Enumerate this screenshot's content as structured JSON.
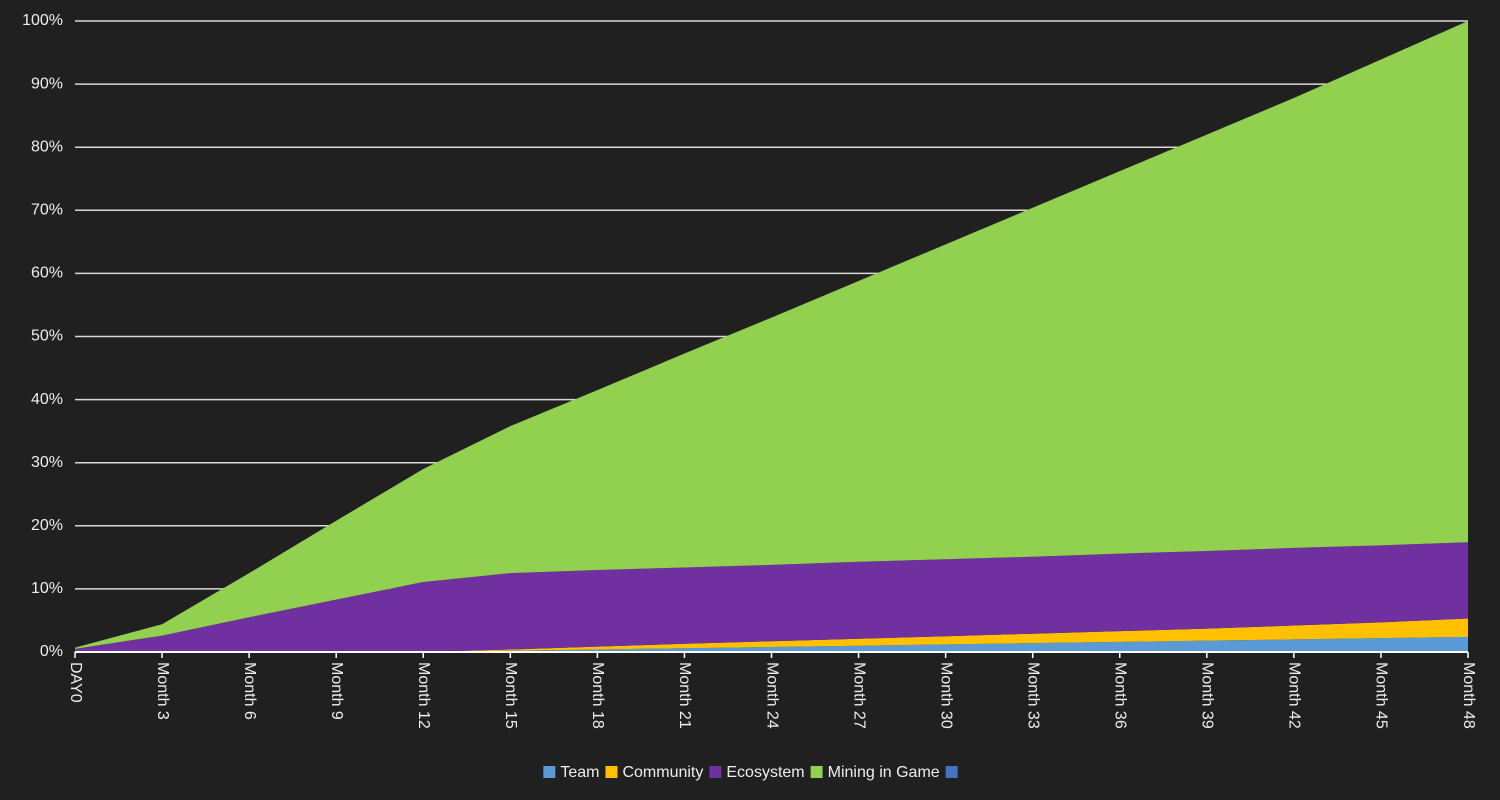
{
  "chart_data": {
    "type": "stacked-area",
    "categories": [
      "DAY0",
      "Month 3",
      "Month 6",
      "Month 9",
      "Month 12",
      "Month 15",
      "Month 18",
      "Month 21",
      "Month 24",
      "Month 27",
      "Month 30",
      "Month 33",
      "Month 36",
      "Month 39",
      "Month 42",
      "Month 45",
      "Month 48"
    ],
    "series": [
      {
        "name": "Team",
        "color": "#5b9bd5",
        "values": [
          0,
          0,
          0,
          0,
          0,
          0.2,
          0.4,
          0.6,
          0.8,
          1.0,
          1.2,
          1.4,
          1.6,
          1.8,
          2.0,
          2.2,
          2.4
        ]
      },
      {
        "name": "Community",
        "color": "#ffc000",
        "values": [
          0,
          0,
          0,
          0,
          0,
          0.2,
          0.45,
          0.7,
          0.9,
          1.1,
          1.3,
          1.5,
          1.7,
          1.9,
          2.2,
          2.5,
          2.9
        ]
      },
      {
        "name": "Ecosystem",
        "color": "#7030a0",
        "values": [
          0.5,
          2.6,
          5.5,
          8.3,
          11.1,
          12.1,
          12.15,
          12.1,
          12.1,
          12.2,
          12.2,
          12.2,
          12.3,
          12.3,
          12.3,
          12.2,
          12.1
        ]
      },
      {
        "name": "Mining in Game",
        "color": "#92d050",
        "values": [
          0.2,
          1.8,
          7.0,
          12.5,
          17.9,
          23.3,
          28.5,
          33.9,
          39.2,
          44.5,
          49.9,
          55.3,
          60.6,
          66.0,
          71.3,
          77.0,
          82.6
        ]
      },
      {
        "color": "#4472c4",
        "values": [
          0,
          0,
          0,
          0,
          0,
          0,
          0,
          0,
          0,
          0,
          0,
          0,
          0,
          0,
          0,
          0,
          0
        ]
      }
    ],
    "ylim": [
      0,
      100
    ],
    "yticks": [
      {
        "value": 0,
        "label": "0%"
      },
      {
        "value": 10,
        "label": "10%"
      },
      {
        "value": 20,
        "label": "20%"
      },
      {
        "value": 30,
        "label": "30%"
      },
      {
        "value": 40,
        "label": "40%"
      },
      {
        "value": 50,
        "label": "50%"
      },
      {
        "value": 60,
        "label": "60%"
      },
      {
        "value": 70,
        "label": "70%"
      },
      {
        "value": 80,
        "label": "80%"
      },
      {
        "value": 90,
        "label": "90%"
      },
      {
        "value": 100,
        "label": "100%"
      }
    ],
    "grid": true,
    "legend": "bottom"
  }
}
